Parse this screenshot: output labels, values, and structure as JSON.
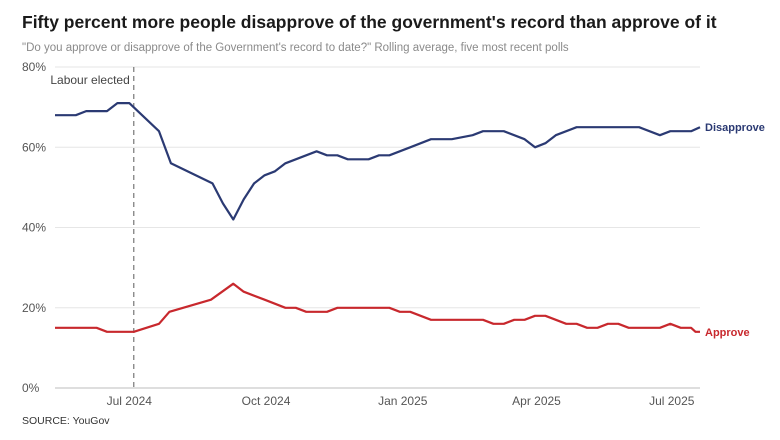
{
  "title": "Fifty percent more people disapprove of the government's record than approve of it",
  "subtitle": "\"Do you approve or disapprove of the Government's record to date?\" Rolling average, five most recent polls",
  "source": "SOURCE: YouGov",
  "chart_data": {
    "type": "line",
    "title": "Fifty percent more people disapprove of the government's record than approve of it",
    "x_range": [
      "2024-05-12",
      "2025-07-20"
    ],
    "ylim": [
      0,
      80
    ],
    "y_ticks": [
      {
        "value": 0,
        "label": "0%"
      },
      {
        "value": 20,
        "label": "20%"
      },
      {
        "value": 40,
        "label": "40%"
      },
      {
        "value": 60,
        "label": "60%"
      },
      {
        "value": 80,
        "label": "80%"
      }
    ],
    "x_ticks": [
      {
        "date": "2024-07-01",
        "label": "Jul 2024"
      },
      {
        "date": "2024-10-01",
        "label": "Oct 2024"
      },
      {
        "date": "2025-01-01",
        "label": "Jan 2025"
      },
      {
        "date": "2025-04-01",
        "label": "Apr 2025"
      },
      {
        "date": "2025-07-01",
        "label": "Jul 2025"
      }
    ],
    "grid": true,
    "annotation": {
      "date": "2024-07-04",
      "label": "Labour elected"
    },
    "series": [
      {
        "name": "Disapprove",
        "color": "#2b3a73",
        "points": [
          [
            "2024-05-12",
            68
          ],
          [
            "2024-05-26",
            68
          ],
          [
            "2024-06-02",
            69
          ],
          [
            "2024-06-16",
            69
          ],
          [
            "2024-06-23",
            71
          ],
          [
            "2024-07-01",
            71
          ],
          [
            "2024-07-21",
            64
          ],
          [
            "2024-07-29",
            56
          ],
          [
            "2024-08-26",
            51
          ],
          [
            "2024-09-02",
            46
          ],
          [
            "2024-09-09",
            42
          ],
          [
            "2024-09-16",
            47
          ],
          [
            "2024-09-23",
            51
          ],
          [
            "2024-09-30",
            53
          ],
          [
            "2024-10-07",
            54
          ],
          [
            "2024-10-14",
            56
          ],
          [
            "2024-10-21",
            57
          ],
          [
            "2024-10-28",
            58
          ],
          [
            "2024-11-04",
            59
          ],
          [
            "2024-11-11",
            58
          ],
          [
            "2024-11-18",
            58
          ],
          [
            "2024-11-25",
            57
          ],
          [
            "2024-12-02",
            57
          ],
          [
            "2024-12-09",
            57
          ],
          [
            "2024-12-16",
            58
          ],
          [
            "2024-12-23",
            58
          ],
          [
            "2025-01-06",
            60
          ],
          [
            "2025-01-20",
            62
          ],
          [
            "2025-02-03",
            62
          ],
          [
            "2025-02-17",
            63
          ],
          [
            "2025-02-24",
            64
          ],
          [
            "2025-03-10",
            64
          ],
          [
            "2025-03-24",
            62
          ],
          [
            "2025-03-31",
            60
          ],
          [
            "2025-04-07",
            61
          ],
          [
            "2025-04-14",
            63
          ],
          [
            "2025-04-28",
            65
          ],
          [
            "2025-05-12",
            65
          ],
          [
            "2025-06-09",
            65
          ],
          [
            "2025-06-23",
            63
          ],
          [
            "2025-06-30",
            64
          ],
          [
            "2025-07-14",
            64
          ],
          [
            "2025-07-20",
            65
          ]
        ]
      },
      {
        "name": "Approve",
        "color": "#c8282d",
        "points": [
          [
            "2024-05-12",
            15
          ],
          [
            "2024-06-09",
            15
          ],
          [
            "2024-06-16",
            14
          ],
          [
            "2024-06-30",
            14
          ],
          [
            "2024-07-04",
            14
          ],
          [
            "2024-07-21",
            16
          ],
          [
            "2024-07-28",
            19
          ],
          [
            "2024-08-25",
            22
          ],
          [
            "2024-09-09",
            26
          ],
          [
            "2024-09-16",
            24
          ],
          [
            "2024-09-30",
            22
          ],
          [
            "2024-10-14",
            20
          ],
          [
            "2024-10-21",
            20
          ],
          [
            "2024-10-28",
            19
          ],
          [
            "2024-11-11",
            19
          ],
          [
            "2024-11-18",
            20
          ],
          [
            "2024-12-23",
            20
          ],
          [
            "2024-12-30",
            19
          ],
          [
            "2025-01-06",
            19
          ],
          [
            "2025-01-20",
            17
          ],
          [
            "2025-02-24",
            17
          ],
          [
            "2025-03-03",
            16
          ],
          [
            "2025-03-10",
            16
          ],
          [
            "2025-03-17",
            17
          ],
          [
            "2025-03-24",
            17
          ],
          [
            "2025-03-31",
            18
          ],
          [
            "2025-04-07",
            18
          ],
          [
            "2025-04-21",
            16
          ],
          [
            "2025-04-28",
            16
          ],
          [
            "2025-05-05",
            15
          ],
          [
            "2025-05-12",
            15
          ],
          [
            "2025-05-19",
            16
          ],
          [
            "2025-05-26",
            16
          ],
          [
            "2025-06-02",
            15
          ],
          [
            "2025-06-23",
            15
          ],
          [
            "2025-06-30",
            16
          ],
          [
            "2025-07-07",
            15
          ],
          [
            "2025-07-14",
            15
          ],
          [
            "2025-07-17",
            14
          ],
          [
            "2025-07-20",
            14
          ]
        ]
      }
    ]
  }
}
